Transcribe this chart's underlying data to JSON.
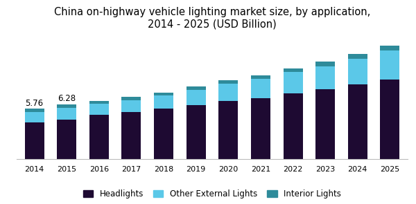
{
  "title": "China on-highway vehicle lighting market size, by application,\n2014 - 2025 (USD Billion)",
  "years": [
    2014,
    2015,
    2016,
    2017,
    2018,
    2019,
    2020,
    2021,
    2022,
    2023,
    2024,
    2025
  ],
  "headlights": [
    4.2,
    4.55,
    5.1,
    5.4,
    5.75,
    6.2,
    6.65,
    7.0,
    7.5,
    8.0,
    8.55,
    9.1
  ],
  "other_external": [
    1.2,
    1.35,
    1.2,
    1.35,
    1.5,
    1.7,
    2.0,
    2.2,
    2.5,
    2.6,
    2.9,
    3.3
  ],
  "interior": [
    0.36,
    0.38,
    0.35,
    0.4,
    0.38,
    0.38,
    0.38,
    0.4,
    0.38,
    0.6,
    0.55,
    0.6
  ],
  "annotations": [
    {
      "year": 2014,
      "text": "5.76",
      "total": 5.76
    },
    {
      "year": 2015,
      "text": "6.28",
      "total": 6.28
    }
  ],
  "color_headlights": "#1e0a32",
  "color_other_external": "#5bc8e8",
  "color_interior": "#2e8b9a",
  "bar_width": 0.6,
  "ylim": [
    0,
    14
  ],
  "legend_labels": [
    "Headlights",
    "Other External Lights",
    "Interior Lights"
  ],
  "background_color": "#ffffff",
  "title_fontsize": 10.5,
  "annotation_fontsize": 8.5
}
